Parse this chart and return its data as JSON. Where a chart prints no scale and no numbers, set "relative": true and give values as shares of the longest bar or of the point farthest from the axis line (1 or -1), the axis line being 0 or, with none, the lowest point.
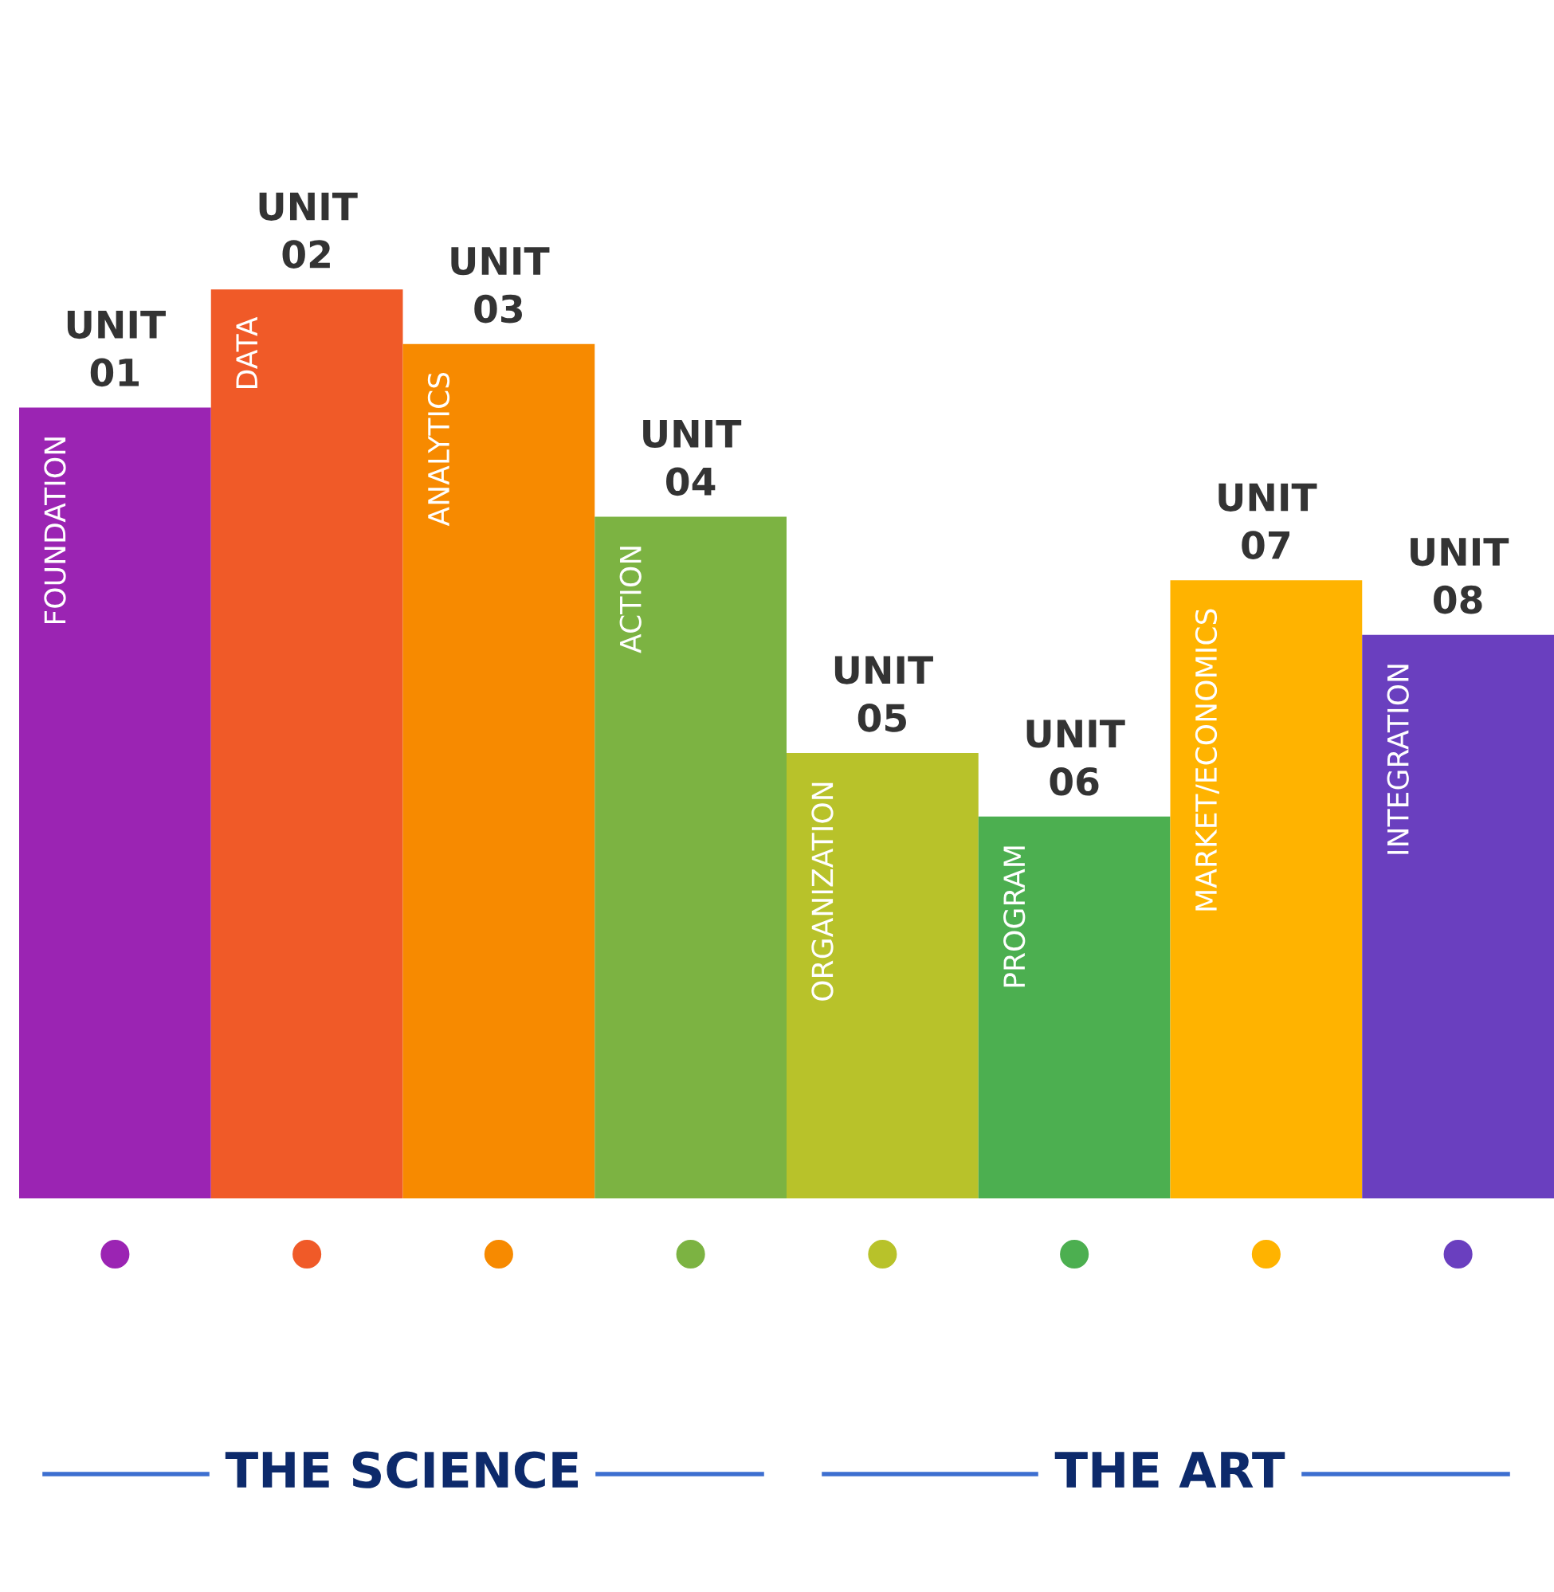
{
  "chart_data": {
    "type": "bar",
    "relative": true,
    "categories": [
      "FOUNDATION",
      "DATA",
      "ANALYTICS",
      "ACTION",
      "ORGANIZATION",
      "PROGRAM",
      "MARKET/ECONOMICS",
      "INTEGRATION"
    ],
    "values": [
      0.87,
      1,
      0.94,
      0.75,
      0.49,
      0.42,
      0.68,
      0.62
    ],
    "colors": [
      "#9b24b3",
      "#f05a28",
      "#f78a00",
      "#7cb342",
      "#b8c22a",
      "#4caf50",
      "#ffb300",
      "#6a3fbf"
    ],
    "annotations": [
      {
        "text": "UNIT 01",
        "x": "FOUNDATION",
        "y": 0.87
      },
      {
        "text": "UNIT 02",
        "x": "DATA",
        "y": 1
      },
      {
        "text": "UNIT 03",
        "x": "ANALYTICS",
        "y": 0.94
      },
      {
        "text": "UNIT 04",
        "x": "ACTION",
        "y": 0.75
      },
      {
        "text": "UNIT 05",
        "x": "ORGANIZATION",
        "y": 0.49
      },
      {
        "text": "UNIT 06",
        "x": "PROGRAM",
        "y": 0.42
      },
      {
        "text": "UNIT 07",
        "x": "MARKET/ECONOMICS",
        "y": 0.68
      },
      {
        "text": "UNIT 08",
        "x": "INTEGRATION",
        "y": 0.62
      },
      "THE SCIENCE",
      "THE ART"
    ]
  }
}
